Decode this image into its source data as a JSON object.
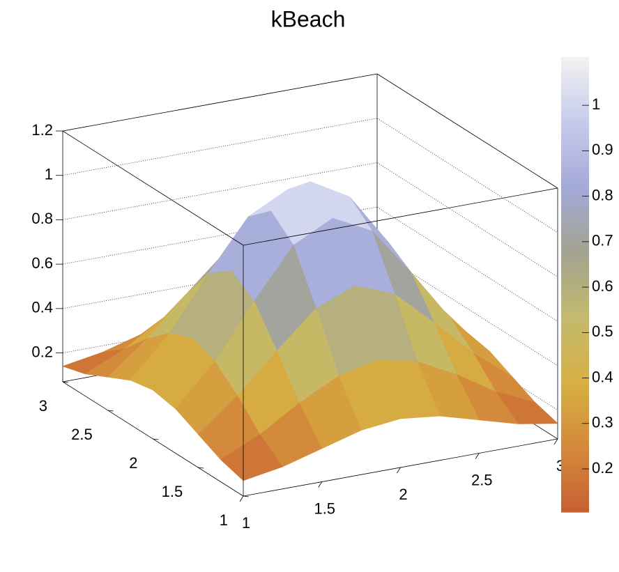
{
  "chart_data": {
    "type": "surface",
    "title": "kBeach",
    "x": [
      1,
      1.25,
      1.5,
      1.75,
      2,
      2.25,
      2.5,
      2.75,
      3
    ],
    "y": [
      1,
      1.25,
      1.5,
      1.75,
      2,
      2.25,
      2.5,
      2.75,
      3
    ],
    "z": [
      [
        0.14,
        0.17,
        0.22,
        0.27,
        0.29,
        0.27,
        0.22,
        0.17,
        0.14
      ],
      [
        0.17,
        0.25,
        0.36,
        0.45,
        0.49,
        0.45,
        0.36,
        0.25,
        0.17
      ],
      [
        0.22,
        0.36,
        0.53,
        0.69,
        0.76,
        0.69,
        0.53,
        0.36,
        0.22
      ],
      [
        0.27,
        0.45,
        0.69,
        0.91,
        1.0,
        0.91,
        0.69,
        0.45,
        0.27
      ],
      [
        0.29,
        0.49,
        0.76,
        1.0,
        1.1,
        1.0,
        0.76,
        0.49,
        0.29
      ],
      [
        0.27,
        0.45,
        0.69,
        0.91,
        1.0,
        0.91,
        0.69,
        0.45,
        0.27
      ],
      [
        0.22,
        0.36,
        0.53,
        0.69,
        0.76,
        0.69,
        0.53,
        0.36,
        0.22
      ],
      [
        0.17,
        0.25,
        0.36,
        0.45,
        0.49,
        0.45,
        0.36,
        0.25,
        0.17
      ],
      [
        0.14,
        0.17,
        0.22,
        0.27,
        0.29,
        0.27,
        0.22,
        0.17,
        0.14
      ]
    ],
    "xlim": [
      1,
      3
    ],
    "ylim": [
      1,
      3
    ],
    "zlim": [
      0.07,
      1.2
    ],
    "xticks": [
      1,
      1.5,
      2,
      2.5,
      3
    ],
    "yticks": [
      1,
      1.5,
      2,
      2.5,
      3
    ],
    "zticks": [
      0.2,
      0.4,
      0.6,
      0.8,
      1,
      1.2
    ],
    "colorlim": [
      0.105,
      1.106
    ],
    "colorbar_ticks": [
      0.2,
      0.3,
      0.4,
      0.5,
      0.6,
      0.7,
      0.8,
      0.9,
      1
    ],
    "palette": [
      "#c75f33",
      "#d3893a",
      "#d6b043",
      "#c3ba6e",
      "#a3a390",
      "#a3aad8",
      "#c6cbec",
      "#f2f2f2"
    ],
    "grid": true
  }
}
